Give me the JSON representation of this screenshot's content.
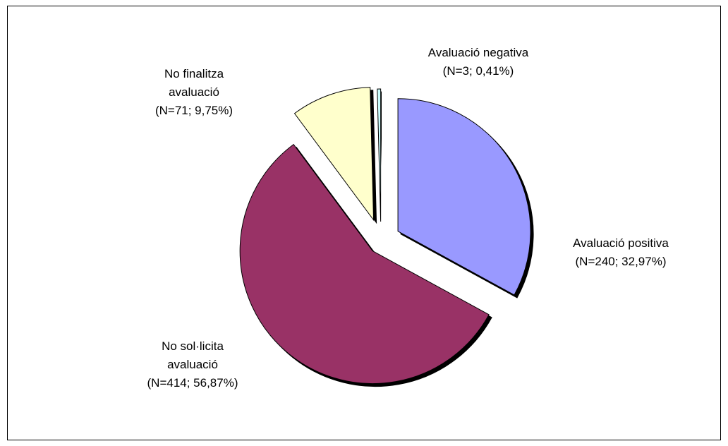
{
  "chart_data": {
    "type": "pie",
    "categories": [
      "Avaluació positiva",
      "No sol·licita\navaluació",
      "No finalitza\navaluació",
      "Avaluació negativa"
    ],
    "values": [
      32.97,
      56.87,
      9.75,
      0.41
    ],
    "value_labels": [
      "(N=240; 32,97%)",
      "(N=414; 56,87%)",
      "(N=71; 9,75%)",
      "(N=3; 0,41%)"
    ],
    "colors": [
      "#9999ff",
      "#993366",
      "#ffffcc",
      "#ccffff"
    ]
  }
}
